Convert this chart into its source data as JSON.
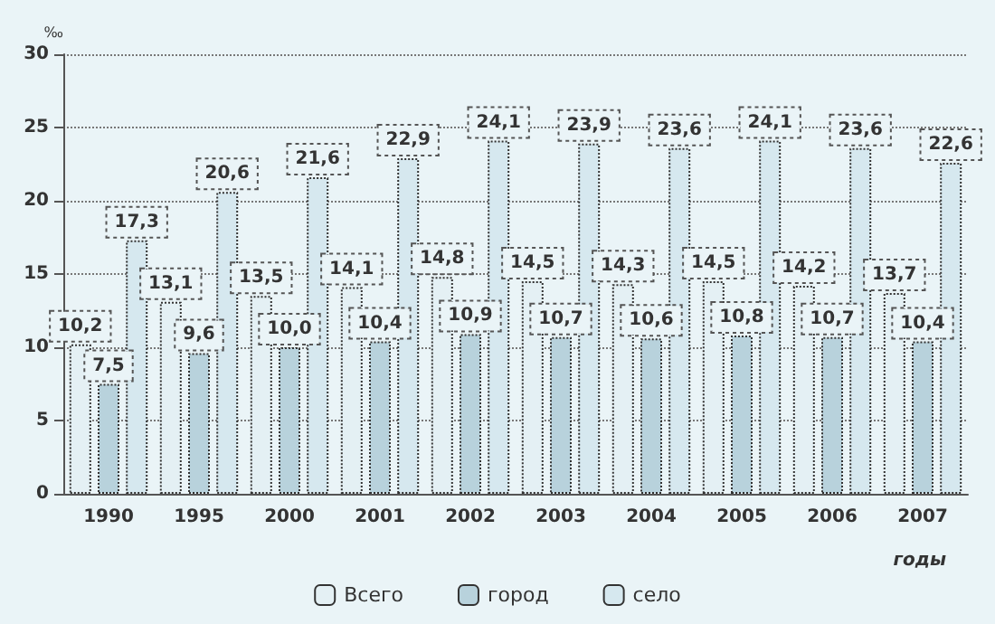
{
  "chart_data": {
    "type": "bar",
    "ylabel": "‰",
    "xlabel": "годы",
    "categories": [
      "1990",
      "1995",
      "2000",
      "2001",
      "2002",
      "2003",
      "2004",
      "2005",
      "2006",
      "2007"
    ],
    "series": [
      {
        "name": "Всего",
        "color": "#e4f0f4",
        "values": [
          10.2,
          13.1,
          13.5,
          14.1,
          14.8,
          14.5,
          14.3,
          14.5,
          14.2,
          13.7
        ],
        "value_labels": [
          "10,2",
          "13,1",
          "13,5",
          "14,1",
          "14,8",
          "14,5",
          "14,3",
          "14,5",
          "14,2",
          "13,7"
        ]
      },
      {
        "name": "город",
        "color": "#b8d2dc",
        "values": [
          7.5,
          9.6,
          10.0,
          10.4,
          10.9,
          10.7,
          10.6,
          10.8,
          10.7,
          10.4
        ],
        "value_labels": [
          "7,5",
          "9,6",
          "10,0",
          "10,4",
          "10,9",
          "10,7",
          "10,6",
          "10,8",
          "10,7",
          "10,4"
        ]
      },
      {
        "name": "село",
        "color": "#d6e8ef",
        "values": [
          17.3,
          20.6,
          21.6,
          22.9,
          24.1,
          23.9,
          23.6,
          24.1,
          23.6,
          22.6
        ],
        "value_labels": [
          "17,3",
          "20,6",
          "21,6",
          "22,9",
          "24,1",
          "23,9",
          "23,6",
          "24,1",
          "23,6",
          "22,6"
        ]
      }
    ],
    "ylim": [
      0,
      30
    ],
    "yticks": [
      0,
      5,
      10,
      15,
      20,
      25,
      30
    ],
    "grid": "y",
    "legend": "bottom"
  }
}
